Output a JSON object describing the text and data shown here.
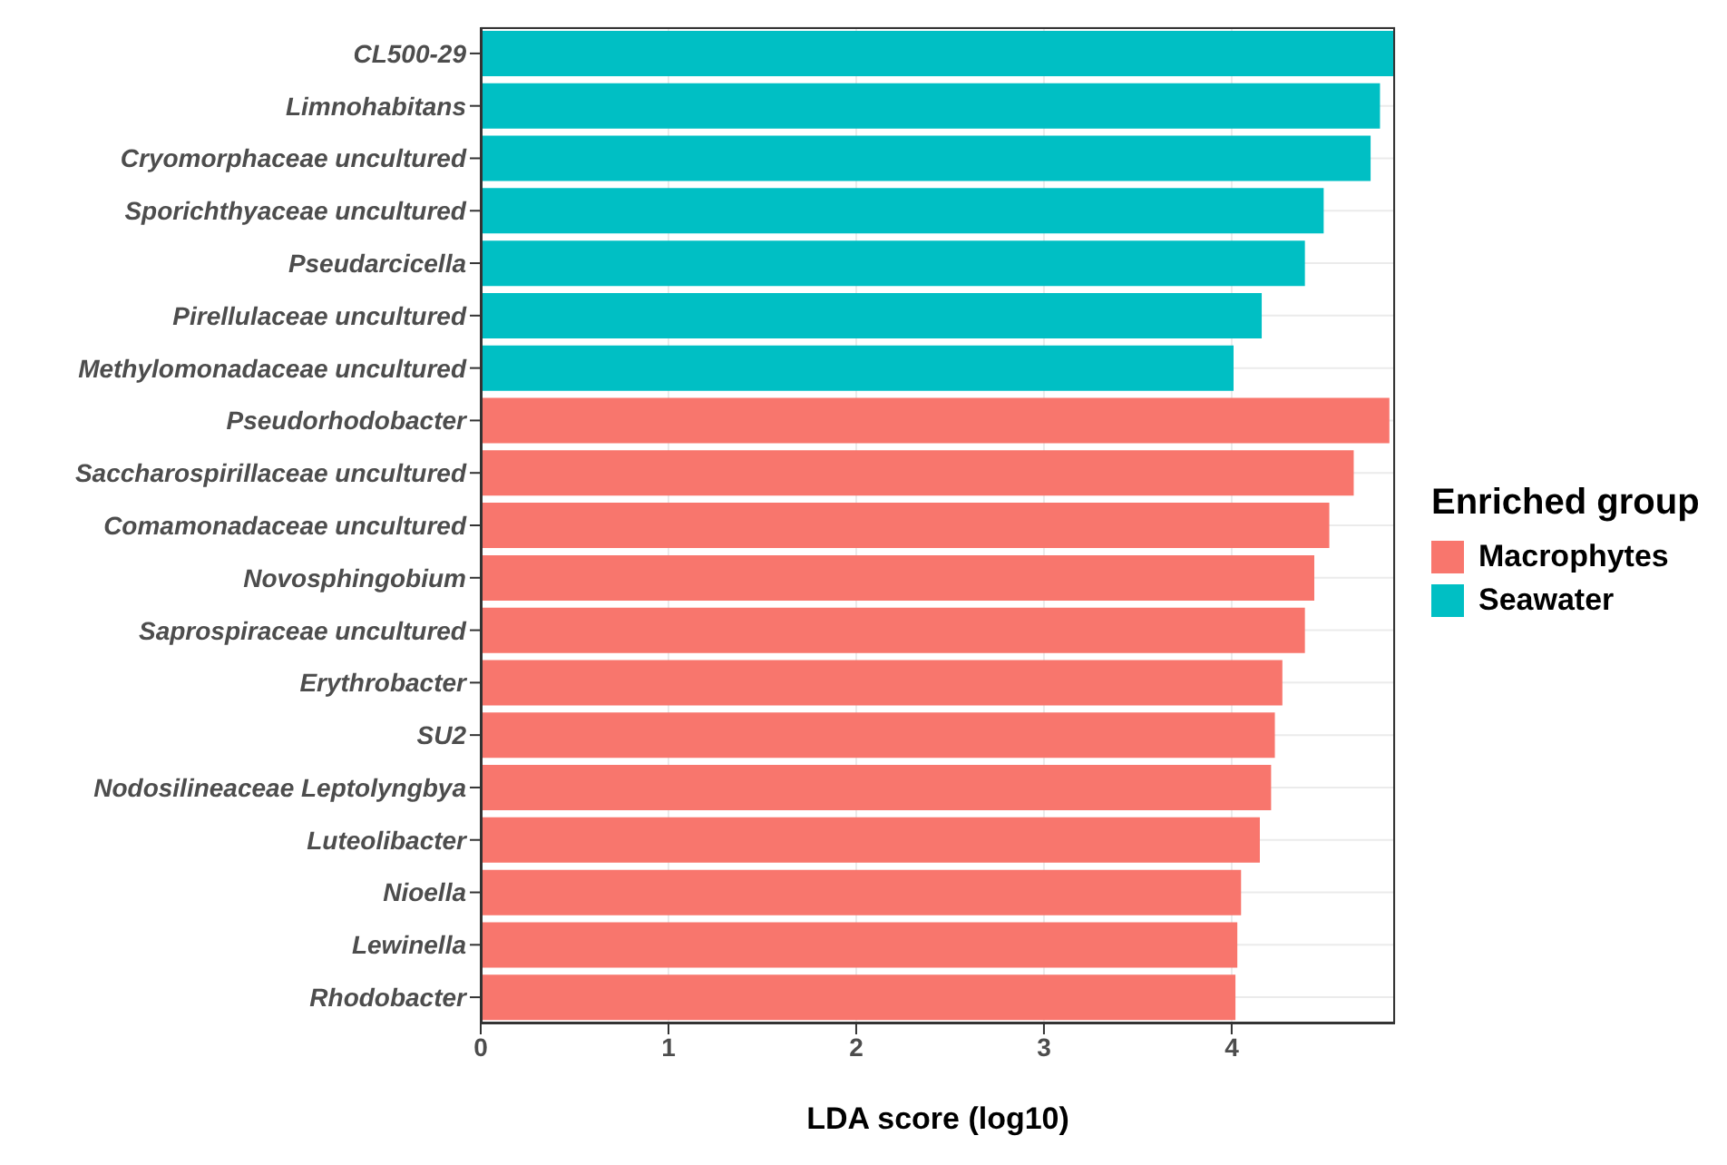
{
  "chart_data": {
    "type": "bar",
    "orientation": "horizontal",
    "xlabel": "LDA score (log10)",
    "legend_title": "Enriched group",
    "legend": "right",
    "grid": true,
    "categories": [
      "CL500-29",
      "Limnohabitans",
      "Cryomorphaceae uncultured",
      "Sporichthyaceae uncultured",
      "Pseudarcicella",
      "Pirellulaceae uncultured",
      "Methylomonadaceae uncultured",
      "Pseudorhodobacter",
      "Saccharospirillaceae uncultured",
      "Comamonadaceae uncultured",
      "Novosphingobium",
      "Saprospiraceae uncultured",
      "Erythrobacter",
      "SU2",
      "Nodosilineaceae Leptolyngbya",
      "Luteolibacter",
      "Nioella",
      "Lewinella",
      "Rhodobacter"
    ],
    "series": [
      {
        "name": "Macrophytes",
        "color": "#f8766d",
        "values": [
          null,
          null,
          null,
          null,
          null,
          null,
          null,
          4.84,
          4.65,
          4.52,
          4.44,
          4.39,
          4.27,
          4.23,
          4.21,
          4.15,
          4.05,
          4.03,
          4.02
        ]
      },
      {
        "name": "Seawater",
        "color": "#00bfc4",
        "values": [
          4.87,
          4.79,
          4.74,
          4.49,
          4.39,
          4.16,
          4.01,
          null,
          null,
          null,
          null,
          null,
          null,
          null,
          null,
          null,
          null,
          null,
          null
        ]
      }
    ],
    "xlim": [
      0,
      4.87
    ],
    "xticks": [
      0,
      1,
      2,
      3,
      4
    ]
  }
}
